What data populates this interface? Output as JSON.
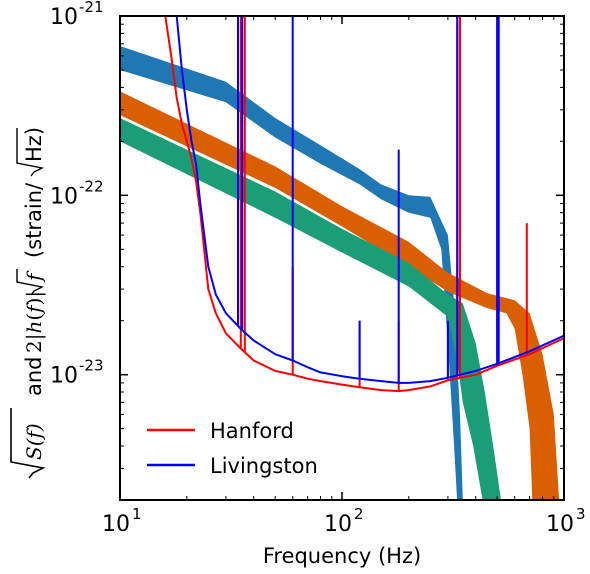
{
  "chart_data": {
    "type": "line",
    "xlabel": "Frequency (Hz)",
    "ylabel_prefix": "and",
    "ylabel_units": "(strain/",
    "ylabel_units_tail": "Hz)",
    "x_scale": "log",
    "y_scale": "log",
    "xlim": [
      10,
      1000
    ],
    "ylim": [
      2e-24,
      1e-21
    ],
    "x_ticks": [
      {
        "value": 10,
        "base": "10",
        "exp": "1"
      },
      {
        "value": 100,
        "base": "10",
        "exp": "2"
      },
      {
        "value": 1000,
        "base": "10",
        "exp": "3"
      }
    ],
    "y_ticks": [
      {
        "value": 1e-23,
        "base": "10",
        "exp": "-23"
      },
      {
        "value": 1e-22,
        "base": "10",
        "exp": "-22"
      },
      {
        "value": 1e-21,
        "base": "10",
        "exp": "-21"
      }
    ],
    "grid": false,
    "legend_position": "lower-left",
    "series": [
      {
        "name": "Hanford",
        "color": "#ff0000",
        "x": [
          16,
          17,
          18,
          19,
          20,
          21,
          22,
          23,
          25,
          27,
          30,
          35,
          40,
          50,
          60,
          70,
          80,
          100,
          120,
          150,
          180,
          200,
          250,
          300,
          400,
          500,
          700,
          1000
        ],
        "y": [
          1e-21,
          6e-22,
          3.5e-22,
          2.5e-22,
          2e-22,
          1.6e-22,
          1.2e-22,
          8e-23,
          3e-23,
          2.2e-23,
          1.7e-23,
          1.4e-23,
          1.2e-23,
          1.05e-23,
          1e-23,
          9.5e-24,
          9.2e-24,
          8.8e-24,
          8.5e-24,
          8.2e-24,
          8.1e-24,
          8.2e-24,
          8.6e-24,
          9.3e-24,
          1e-23,
          1.12e-23,
          1.3e-23,
          1.6e-23
        ],
        "lines": [
          {
            "f": 35,
            "v": 1e-21
          },
          {
            "f": 36.5,
            "v": 1e-21
          },
          {
            "f": 60,
            "v": 4e-23
          },
          {
            "f": 120,
            "v": 2e-23
          },
          {
            "f": 180,
            "v": 2e-23
          },
          {
            "f": 300,
            "v": 1.8e-23
          },
          {
            "f": 330,
            "v": 1e-21
          },
          {
            "f": 340,
            "v": 1e-21
          },
          {
            "f": 500,
            "v": 1e-21
          },
          {
            "f": 505,
            "v": 1e-21
          },
          {
            "f": 680,
            "v": 7e-23
          },
          {
            "f": 1000,
            "v": 2.5e-23
          }
        ]
      },
      {
        "name": "Livingston",
        "color": "#0000ff",
        "x": [
          18,
          19,
          20,
          21,
          22,
          23,
          25,
          27,
          30,
          35,
          40,
          50,
          60,
          70,
          80,
          100,
          120,
          150,
          180,
          200,
          250,
          300,
          400,
          500,
          700,
          1000
        ],
        "y": [
          1e-21,
          5e-22,
          3e-22,
          2e-22,
          1.5e-22,
          9e-23,
          4e-23,
          2.8e-23,
          2.2e-23,
          1.8e-23,
          1.55e-23,
          1.3e-23,
          1.2e-23,
          1.1e-23,
          1.03e-23,
          9.8e-24,
          9.5e-24,
          9.2e-24,
          9e-24,
          9e-24,
          9.2e-24,
          9.6e-24,
          1.05e-23,
          1.15e-23,
          1.35e-23,
          1.65e-23
        ],
        "lines": [
          {
            "f": 34,
            "v": 1e-21
          },
          {
            "f": 35.5,
            "v": 1e-21
          },
          {
            "f": 60,
            "v": 1e-21
          },
          {
            "f": 120,
            "v": 2e-23
          },
          {
            "f": 180,
            "v": 1.8e-22
          },
          {
            "f": 300,
            "v": 2e-23
          },
          {
            "f": 331,
            "v": 1e-21
          },
          {
            "f": 500,
            "v": 1e-21
          },
          {
            "f": 508,
            "v": 1e-21
          },
          {
            "f": 1000,
            "v": 2e-23
          }
        ]
      }
    ],
    "bands": [
      {
        "color": "#1f77b4",
        "lower": [
          [
            10,
            5e-22
          ],
          [
            30,
            3.3e-22
          ],
          [
            50,
            2.1e-22
          ],
          [
            80,
            1.5e-22
          ],
          [
            120,
            1.15e-22
          ],
          [
            150,
            9.5e-23
          ],
          [
            200,
            8e-23
          ],
          [
            250,
            7.5e-23
          ],
          [
            280,
            5e-23
          ],
          [
            300,
            1.5e-23
          ],
          [
            320,
            4e-24
          ],
          [
            330,
            2e-24
          ]
        ],
        "upper": [
          [
            10,
            6.8e-22
          ],
          [
            30,
            4.3e-22
          ],
          [
            50,
            2.7e-22
          ],
          [
            80,
            1.9e-22
          ],
          [
            120,
            1.4e-22
          ],
          [
            150,
            1.15e-22
          ],
          [
            200,
            1e-22
          ],
          [
            250,
            9.8e-23
          ],
          [
            300,
            6e-23
          ],
          [
            320,
            2.5e-23
          ],
          [
            340,
            6e-24
          ],
          [
            350,
            2e-24
          ]
        ]
      },
      {
        "color": "#d95f02",
        "lower": [
          [
            10,
            2.8e-22
          ],
          [
            50,
            1.1e-22
          ],
          [
            100,
            6.7e-23
          ],
          [
            200,
            4e-23
          ],
          [
            300,
            2.9e-23
          ],
          [
            450,
            2.35e-23
          ],
          [
            550,
            2.2e-23
          ],
          [
            600,
            1.8e-23
          ],
          [
            650,
            1e-23
          ],
          [
            700,
            5e-24
          ],
          [
            720,
            2e-24
          ]
        ],
        "upper": [
          [
            10,
            3.8e-22
          ],
          [
            50,
            1.45e-22
          ],
          [
            100,
            8.7e-23
          ],
          [
            200,
            5.5e-23
          ],
          [
            300,
            3.7e-23
          ],
          [
            450,
            2.85e-23
          ],
          [
            600,
            2.6e-23
          ],
          [
            700,
            2.2e-23
          ],
          [
            800,
            1.3e-23
          ],
          [
            900,
            6e-24
          ],
          [
            950,
            2e-24
          ]
        ]
      },
      {
        "color": "#1b9e77",
        "lower": [
          [
            10,
            2e-22
          ],
          [
            50,
            7.5e-23
          ],
          [
            100,
            4.8e-23
          ],
          [
            200,
            3.1e-23
          ],
          [
            300,
            2.1e-23
          ],
          [
            330,
            1.2e-23
          ],
          [
            350,
            7e-24
          ],
          [
            390,
            4e-24
          ],
          [
            430,
            2e-24
          ]
        ],
        "upper": [
          [
            10,
            2.7e-22
          ],
          [
            50,
            1.05e-22
          ],
          [
            100,
            6.5e-23
          ],
          [
            200,
            4.2e-23
          ],
          [
            300,
            2.8e-23
          ],
          [
            350,
            2.5e-23
          ],
          [
            400,
            1.5e-23
          ],
          [
            440,
            8e-24
          ],
          [
            480,
            4e-24
          ],
          [
            520,
            2e-24
          ]
        ]
      }
    ]
  }
}
